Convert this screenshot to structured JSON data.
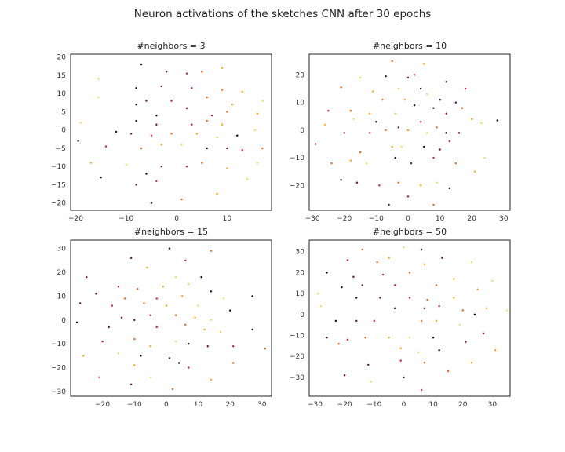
{
  "figure": {
    "suptitle": "Neuron activations of the sketches CNN after 30 epochs"
  },
  "colors": {
    "palette": [
      "#1a0d0d",
      "#6b1a3a",
      "#c0283c",
      "#e8671f",
      "#f5a623",
      "#f9d26a"
    ],
    "frame": "#222222",
    "tick_text": "#333333"
  },
  "chart_data": [
    {
      "type": "scatter",
      "title": "#neighbors = 3",
      "xlabel": "",
      "ylabel": "",
      "xlim": [
        -21,
        18.8
      ],
      "ylim": [
        -22,
        20.8
      ],
      "xticks": [
        -20,
        -10,
        0,
        10
      ],
      "yticks": [
        20,
        15,
        10,
        5,
        0,
        -5,
        -10,
        -15,
        -20
      ],
      "grid": false,
      "points": [
        [
          -7,
          18
        ],
        [
          -2,
          16
        ],
        [
          2,
          15.5
        ],
        [
          5,
          16
        ],
        [
          9,
          17
        ],
        [
          -15.5,
          14
        ],
        [
          -8,
          11.5
        ],
        [
          -3,
          12
        ],
        [
          3,
          11.5
        ],
        [
          9,
          11
        ],
        [
          13,
          10.5
        ],
        [
          -15.5,
          9
        ],
        [
          -8,
          7
        ],
        [
          -6,
          8
        ],
        [
          -1,
          8
        ],
        [
          6,
          9
        ],
        [
          11,
          7
        ],
        [
          17,
          8
        ],
        [
          -4,
          4
        ],
        [
          2,
          6
        ],
        [
          7,
          4
        ],
        [
          10,
          5
        ],
        [
          16,
          4.5
        ],
        [
          -19,
          2
        ],
        [
          -8,
          2.5
        ],
        [
          -4,
          1.5
        ],
        [
          3,
          1.5
        ],
        [
          6,
          2.5
        ],
        [
          9,
          1.5
        ],
        [
          15.5,
          0
        ],
        [
          -12,
          -0.5
        ],
        [
          -9,
          -1
        ],
        [
          -5,
          -1.5
        ],
        [
          -1,
          -1
        ],
        [
          4,
          -1
        ],
        [
          8,
          -2
        ],
        [
          12,
          -1.5
        ],
        [
          -19.5,
          -3
        ],
        [
          -14,
          -4.5
        ],
        [
          -7,
          -5
        ],
        [
          -3,
          -4
        ],
        [
          1,
          -4
        ],
        [
          6,
          -5
        ],
        [
          10,
          -5
        ],
        [
          13,
          -5.5
        ],
        [
          17,
          -5
        ],
        [
          -17,
          -9
        ],
        [
          -10,
          -9.5
        ],
        [
          -6,
          -12
        ],
        [
          -3,
          -10
        ],
        [
          2,
          -10
        ],
        [
          5,
          -9
        ],
        [
          10,
          -10.5
        ],
        [
          16,
          -9
        ],
        [
          -15,
          -13
        ],
        [
          -8,
          -15
        ],
        [
          -4,
          -14
        ],
        [
          1,
          -19
        ],
        [
          8,
          -17.5
        ],
        [
          14,
          -13.5
        ],
        [
          -5,
          -20
        ]
      ]
    },
    {
      "type": "scatter",
      "title": "#neighbors = 10",
      "xlabel": "",
      "ylabel": "",
      "xlim": [
        -31,
        32
      ],
      "ylim": [
        -29,
        27.5
      ],
      "xticks": [
        -30,
        -20,
        -10,
        0,
        10,
        20,
        30
      ],
      "yticks": [
        20,
        10,
        0,
        -10,
        -20
      ],
      "grid": false,
      "points": [
        [
          -5,
          25
        ],
        [
          5,
          24
        ],
        [
          -15,
          19
        ],
        [
          -7,
          19.5
        ],
        [
          0,
          19
        ],
        [
          2,
          20
        ],
        [
          -21,
          15.5
        ],
        [
          -11,
          14
        ],
        [
          -3,
          15
        ],
        [
          4,
          15
        ],
        [
          12,
          17.5
        ],
        [
          18,
          15
        ],
        [
          -8,
          11
        ],
        [
          -1,
          11
        ],
        [
          6,
          13
        ],
        [
          10,
          11
        ],
        [
          15,
          10
        ],
        [
          -25,
          7
        ],
        [
          -18,
          7
        ],
        [
          -12,
          6
        ],
        [
          -4,
          6
        ],
        [
          2,
          9
        ],
        [
          8,
          8
        ],
        [
          12,
          6
        ],
        [
          17,
          8
        ],
        [
          -26,
          2
        ],
        [
          -17,
          4
        ],
        [
          -10,
          3
        ],
        [
          -3,
          1
        ],
        [
          4,
          3
        ],
        [
          9,
          1
        ],
        [
          20,
          4
        ],
        [
          23,
          2.5
        ],
        [
          28,
          3.5
        ],
        [
          -20,
          -1
        ],
        [
          -12,
          -1
        ],
        [
          -7,
          0
        ],
        [
          0,
          0
        ],
        [
          6,
          -1
        ],
        [
          12,
          -1
        ],
        [
          16,
          -1
        ],
        [
          -29,
          -5
        ],
        [
          -15,
          -8
        ],
        [
          -5,
          -6
        ],
        [
          -2,
          -6
        ],
        [
          5,
          -6
        ],
        [
          10,
          -7
        ],
        [
          13,
          -4
        ],
        [
          -24,
          -12
        ],
        [
          -18,
          -11
        ],
        [
          -13,
          -12
        ],
        [
          -4,
          -10
        ],
        [
          1,
          -12
        ],
        [
          8,
          -10
        ],
        [
          15,
          -12
        ],
        [
          21,
          -15
        ],
        [
          24,
          -10
        ],
        [
          -21,
          -18
        ],
        [
          -16,
          -19
        ],
        [
          -9,
          -20
        ],
        [
          -3,
          -19
        ],
        [
          4,
          -20
        ],
        [
          9,
          -19
        ],
        [
          13,
          -21
        ],
        [
          -6,
          -27
        ],
        [
          0,
          -24
        ],
        [
          8,
          -27
        ]
      ]
    },
    {
      "type": "scatter",
      "title": "#neighbors = 15",
      "xlabel": "",
      "ylabel": "",
      "xlim": [
        -30,
        33
      ],
      "ylim": [
        -32,
        33.5
      ],
      "xticks": [
        -20,
        -10,
        0,
        10,
        20,
        30
      ],
      "yticks": [
        30,
        20,
        10,
        0,
        -10,
        -20,
        -30
      ],
      "grid": false,
      "points": [
        [
          1,
          30
        ],
        [
          -11,
          26
        ],
        [
          6,
          25
        ],
        [
          14,
          29
        ],
        [
          -6,
          22
        ],
        [
          3,
          18
        ],
        [
          11,
          18
        ],
        [
          -25,
          18
        ],
        [
          -15,
          14
        ],
        [
          -9,
          13
        ],
        [
          -1,
          14
        ],
        [
          7,
          15
        ],
        [
          14,
          12
        ],
        [
          -22,
          11
        ],
        [
          -3,
          9
        ],
        [
          -13,
          9
        ],
        [
          5,
          10
        ],
        [
          18,
          9
        ],
        [
          27,
          10
        ],
        [
          -27,
          7
        ],
        [
          -17,
          6
        ],
        [
          -7,
          7
        ],
        [
          0,
          6
        ],
        [
          10,
          6
        ],
        [
          20,
          4
        ],
        [
          -14,
          1
        ],
        [
          -5,
          2
        ],
        [
          3,
          2
        ],
        [
          9,
          1
        ],
        [
          14,
          0
        ],
        [
          -28,
          -1
        ],
        [
          -10,
          0
        ],
        [
          -3,
          -3
        ],
        [
          6,
          -2
        ],
        [
          12,
          -4
        ],
        [
          17,
          -5
        ],
        [
          27,
          -4
        ],
        [
          -18,
          -3
        ],
        [
          -20,
          -9
        ],
        [
          -10,
          -8
        ],
        [
          -5,
          -11
        ],
        [
          3,
          -9
        ],
        [
          7,
          -10
        ],
        [
          13,
          -11
        ],
        [
          21,
          -11
        ],
        [
          31,
          -12
        ],
        [
          -26,
          -15
        ],
        [
          -15,
          -14
        ],
        [
          -8,
          -15
        ],
        [
          1,
          -16
        ],
        [
          7,
          -20
        ],
        [
          21,
          -18
        ],
        [
          -10,
          -19
        ],
        [
          -5,
          -24
        ],
        [
          4,
          -18
        ],
        [
          -11,
          -27
        ],
        [
          -21,
          -24
        ],
        [
          2,
          -29
        ],
        [
          14,
          -25
        ]
      ]
    },
    {
      "type": "scatter",
      "title": "#neighbors = 50",
      "xlabel": "",
      "ylabel": "",
      "xlim": [
        -32,
        36
      ],
      "ylim": [
        -39,
        35.5
      ],
      "xticks": [
        -30,
        -20,
        -10,
        0,
        10,
        20,
        30
      ],
      "yticks": [
        30,
        20,
        10,
        0,
        -10,
        -20,
        -30
      ],
      "grid": false,
      "points": [
        [
          -14,
          31
        ],
        [
          -5,
          27
        ],
        [
          0,
          32
        ],
        [
          6,
          31
        ],
        [
          13,
          27
        ],
        [
          -19,
          26
        ],
        [
          -9,
          25
        ],
        [
          7,
          24
        ],
        [
          23,
          25
        ],
        [
          -26,
          20
        ],
        [
          -17,
          18
        ],
        [
          -7,
          19
        ],
        [
          2,
          20
        ],
        [
          17,
          17
        ],
        [
          30,
          16
        ],
        [
          -21,
          13
        ],
        [
          -14,
          14
        ],
        [
          -3,
          14
        ],
        [
          11,
          14
        ],
        [
          25,
          12
        ],
        [
          -29,
          10
        ],
        [
          -16,
          8
        ],
        [
          -8,
          8
        ],
        [
          2,
          8
        ],
        [
          8,
          7
        ],
        [
          17,
          8
        ],
        [
          -28,
          4
        ],
        [
          -3,
          3
        ],
        [
          7,
          3
        ],
        [
          12,
          4
        ],
        [
          20,
          2
        ],
        [
          28,
          3
        ],
        [
          35,
          2
        ],
        [
          -23,
          -3
        ],
        [
          -16,
          -3
        ],
        [
          -10,
          -3
        ],
        [
          6,
          -3
        ],
        [
          11,
          -3
        ],
        [
          19,
          -5
        ],
        [
          24,
          0
        ],
        [
          -26,
          -11
        ],
        [
          -19,
          -12
        ],
        [
          -13,
          -11
        ],
        [
          -5,
          -11
        ],
        [
          2,
          -11
        ],
        [
          10,
          -11
        ],
        [
          21,
          -13
        ],
        [
          27,
          -9
        ],
        [
          -22,
          -14
        ],
        [
          -1,
          -16
        ],
        [
          5,
          -18
        ],
        [
          12,
          -17
        ],
        [
          -12,
          -24
        ],
        [
          -1,
          -22
        ],
        [
          7,
          -23
        ],
        [
          23,
          -23
        ],
        [
          -11,
          -32
        ],
        [
          0,
          -30
        ],
        [
          -20,
          -29
        ],
        [
          6,
          -36
        ],
        [
          15,
          -27
        ],
        [
          31,
          -17
        ]
      ]
    }
  ]
}
